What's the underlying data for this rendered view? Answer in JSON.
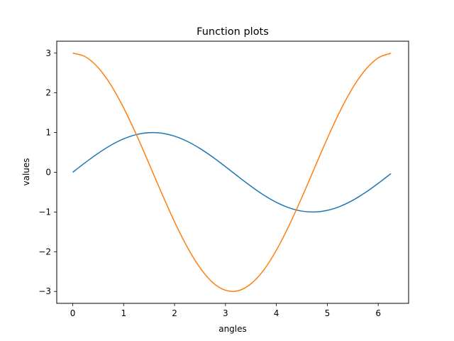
{
  "chart_data": {
    "type": "line",
    "title": "Function plots",
    "xlabel": "angles",
    "ylabel": "values",
    "xlim": [
      -0.314,
      6.597
    ],
    "ylim": [
      -3.3,
      3.3
    ],
    "xticks": [
      0,
      1,
      2,
      3,
      4,
      5,
      6
    ],
    "xtick_labels": [
      "0",
      "1",
      "2",
      "3",
      "4",
      "5",
      "6"
    ],
    "yticks": [
      -3,
      -2,
      -1,
      0,
      1,
      2,
      3
    ],
    "ytick_labels": [
      "−3",
      "−2",
      "−1",
      "0",
      "1",
      "2",
      "3"
    ],
    "grid": false,
    "legend": "none",
    "series": [
      {
        "color": "#1f77b4",
        "x": [
          0,
          0.25,
          0.5,
          0.75,
          1.0,
          1.25,
          1.5,
          1.75,
          2.0,
          2.25,
          2.5,
          2.75,
          3.0,
          3.25,
          3.5,
          3.75,
          4.0,
          4.25,
          4.5,
          4.75,
          5.0,
          5.25,
          5.5,
          5.75,
          6.0,
          6.25
        ],
        "values": [
          0.0,
          0.247,
          0.479,
          0.682,
          0.841,
          0.949,
          0.997,
          0.984,
          0.909,
          0.778,
          0.598,
          0.382,
          0.141,
          -0.108,
          -0.351,
          -0.572,
          -0.757,
          -0.895,
          -0.978,
          -0.999,
          -0.959,
          -0.859,
          -0.706,
          -0.508,
          -0.279,
          -0.033
        ]
      },
      {
        "color": "#ff7f0e",
        "x": [
          0,
          0.25,
          0.5,
          0.75,
          1.0,
          1.25,
          1.5,
          1.75,
          2.0,
          2.25,
          2.5,
          2.75,
          3.0,
          3.25,
          3.5,
          3.75,
          4.0,
          4.25,
          4.5,
          4.75,
          5.0,
          5.25,
          5.5,
          5.75,
          6.0,
          6.25
        ],
        "values": [
          3.0,
          2.907,
          2.633,
          2.195,
          1.621,
          0.946,
          0.212,
          -0.535,
          -1.248,
          -1.884,
          -2.403,
          -2.777,
          -2.97,
          -2.982,
          -2.808,
          -2.465,
          -1.961,
          -1.338,
          -0.633,
          0.111,
          0.851,
          1.539,
          2.128,
          2.583,
          2.88,
          2.998
        ]
      }
    ]
  }
}
